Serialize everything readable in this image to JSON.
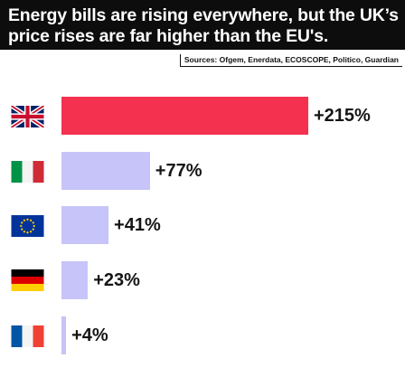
{
  "header": {
    "title": "Energy bills are rising everywhere, but the UK’s price rises are far higher than the EU's.",
    "sources": "Sources: Ofgem, Enerdata, ECOSCOPE, Politico, Guardian"
  },
  "colors": {
    "uk_bar": "#f4314f",
    "other_bar": "#c6c4f8",
    "header_bg": "#0d0d0d"
  },
  "chart_data": {
    "type": "bar",
    "orientation": "horizontal",
    "categories": [
      "UK",
      "Italy",
      "EU",
      "Germany",
      "France"
    ],
    "icons": [
      "uk-flag-icon",
      "italy-flag-icon",
      "eu-flag-icon",
      "germany-flag-icon",
      "france-flag-icon"
    ],
    "values": [
      215,
      77,
      41,
      23,
      4
    ],
    "labels": [
      "+215%",
      "+77%",
      "+41%",
      "+23%",
      "+4%"
    ],
    "xlim": [
      0,
      215
    ],
    "grid": false
  }
}
